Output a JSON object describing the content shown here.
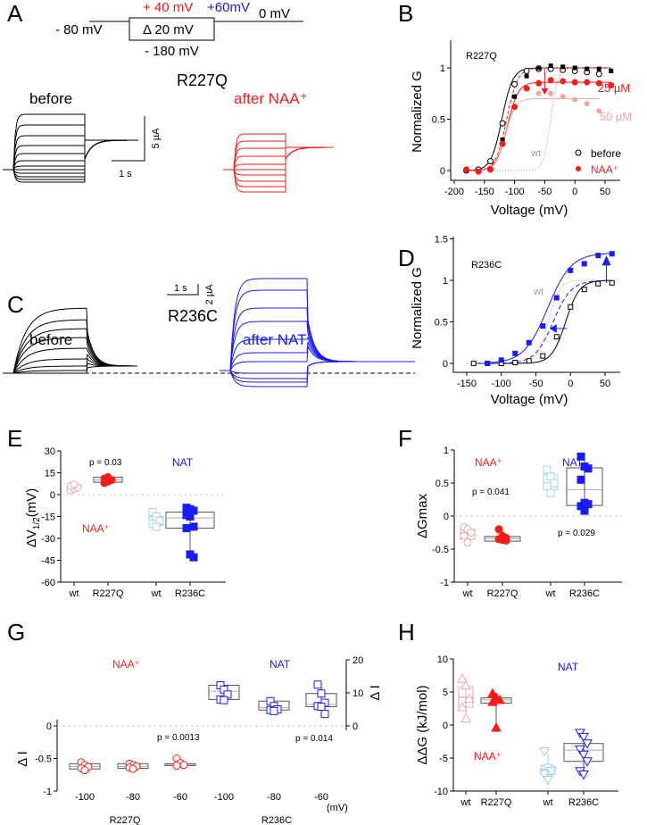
{
  "colors": {
    "naa": "#ff1a1a",
    "naa_light": "#f2a6a6",
    "nat": "#1a1aff",
    "nat_light": "#9fd3f0",
    "wt": "#999999"
  },
  "panels": {
    "A": "A",
    "B": "B",
    "C": "C",
    "D": "D",
    "E": "E",
    "F": "F",
    "G": "G",
    "H": "H"
  },
  "protocol": {
    "hold": "- 80 mV",
    "step": "Δ 20 mV",
    "tail": "0 mV",
    "top_red": "+ 40 mV",
    "top_blue": "+60mV",
    "bottom": "- 180 mV"
  },
  "panelA": {
    "title": "R227Q",
    "before": "before",
    "after": "after NAA⁺",
    "scale_y": "5 µA",
    "scale_x": "1 s"
  },
  "panelC": {
    "title": "R236C",
    "before": "before",
    "after": "after NAT",
    "scale_y": "2 µA",
    "scale_x": "1 s"
  },
  "chart_data": [
    {
      "id": "B",
      "type": "scatter",
      "title": "R227Q",
      "xlabel": "Voltage (mV)",
      "ylabel": "Normalized G",
      "xlim": [
        -200,
        65
      ],
      "ylim": [
        -0.1,
        1.2
      ],
      "xticks": [
        "-200",
        "-150",
        "-100",
        "-50",
        "0",
        "50"
      ],
      "yticks": [
        "0",
        "0.5",
        "1"
      ],
      "legend": {
        "placement": "bottom-right",
        "entries": [
          "before",
          "NAA⁺"
        ]
      },
      "annotations": [
        "25 µM",
        "50 µM",
        "wt"
      ],
      "series": [
        {
          "name": "before",
          "x": [
            -180,
            -160,
            -140,
            -120,
            -100,
            -80,
            -60,
            -40,
            -20,
            0,
            20,
            40
          ],
          "y": [
            0.0,
            0.01,
            0.09,
            0.46,
            0.84,
            0.97,
            0.99,
            0.99,
            0.98,
            0.97,
            0.96,
            0.94
          ]
        },
        {
          "name": "before (25 µM set)",
          "x": [
            -160,
            -140,
            -120,
            -100,
            -80,
            -60,
            -40,
            -20,
            0,
            20,
            40,
            60
          ],
          "y": [
            -0.01,
            0.01,
            0.3,
            0.72,
            0.92,
            1.0,
            1.02,
            1.01,
            1.0,
            0.99,
            0.99,
            0.97
          ]
        },
        {
          "name": "NAA⁺ 25 µM",
          "x": [
            -180,
            -160,
            -140,
            -120,
            -100,
            -80,
            -60,
            -40,
            -20,
            0,
            20,
            40,
            60
          ],
          "y": [
            0.01,
            -0.01,
            0.01,
            0.26,
            0.62,
            0.8,
            0.85,
            0.88,
            0.87,
            0.86,
            0.86,
            0.85,
            0.83
          ]
        },
        {
          "name": "NAA⁺ 50 µM",
          "x": [
            -60,
            -40,
            -20,
            0,
            20,
            40
          ],
          "y": [
            0.75,
            0.75,
            0.72,
            0.69,
            0.65,
            0.58
          ]
        }
      ]
    },
    {
      "id": "D",
      "type": "scatter",
      "title": "R236C",
      "xlabel": "Voltage (mV)",
      "ylabel": "Normalized G",
      "xlim": [
        -150,
        65
      ],
      "ylim": [
        -0.1,
        1.5
      ],
      "xticks": [
        "-150",
        "-100",
        "-50",
        "0",
        "50"
      ],
      "yticks": [
        "0",
        "0.5",
        "1",
        "1.5"
      ],
      "annotations": [
        "wt"
      ],
      "series": [
        {
          "name": "before",
          "x": [
            -140,
            -120,
            -100,
            -80,
            -60,
            -40,
            -20,
            0,
            20,
            40,
            60
          ],
          "y": [
            0,
            0,
            0,
            0.01,
            0.03,
            0.09,
            0.32,
            0.68,
            0.89,
            0.96,
            0.97
          ]
        },
        {
          "name": "NAT",
          "x": [
            -120,
            -100,
            -80,
            -60,
            -40,
            -20,
            0,
            20,
            40,
            60
          ],
          "y": [
            0.0,
            0.04,
            0.12,
            0.25,
            0.45,
            0.79,
            1.12,
            1.2,
            1.3,
            1.32
          ]
        }
      ]
    },
    {
      "id": "E",
      "type": "box",
      "ylabel_main": "ΔV",
      "ylabel_sub": "1/2",
      "ylabel_unit": "(mV)",
      "ylim": [
        -60,
        30
      ],
      "yticks": [
        "-60",
        "-45",
        "-30",
        "-15",
        "0",
        "15",
        "30"
      ],
      "categories": [
        "wt",
        "R227Q",
        "wt",
        "R236C"
      ],
      "annotations": {
        "p": "p = 0.03",
        "nat": "NAT",
        "naa": "NAA⁺"
      },
      "groups": [
        {
          "name": "wt (NAA⁺)",
          "values": [
            3,
            4,
            5,
            6,
            7
          ],
          "box": [
            4,
            5,
            6.5
          ]
        },
        {
          "name": "R227Q",
          "values": [
            8,
            9,
            10,
            11,
            12
          ],
          "box": [
            8.5,
            10,
            12
          ]
        },
        {
          "name": "wt (NAT)",
          "values": [
            -12,
            -15,
            -18,
            -20,
            -22
          ],
          "box": [
            -21,
            -18,
            -15
          ]
        },
        {
          "name": "R236C",
          "values": [
            -9,
            -10,
            -11,
            -14,
            -15,
            -22,
            -23,
            -41,
            -43
          ],
          "box": [
            -23,
            -16,
            -12
          ]
        }
      ]
    },
    {
      "id": "F",
      "type": "box",
      "ylabel": "ΔGmax",
      "ylim": [
        -1,
        1
      ],
      "yticks": [
        "-1",
        "-0.5",
        "0",
        "0.5",
        "1"
      ],
      "categories": [
        "wt",
        "R227Q",
        "wt",
        "R236C"
      ],
      "annotations": {
        "naa": "NAA⁺",
        "nat": "NAT",
        "p1": "p = 0.041",
        "p2": "p = 0.029"
      },
      "groups": [
        {
          "name": "wt (NAA⁺)",
          "values": [
            -0.17,
            -0.2,
            -0.25,
            -0.3,
            -0.4
          ],
          "box": [
            -0.35,
            -0.26,
            -0.2
          ]
        },
        {
          "name": "R227Q",
          "values": [
            -0.2,
            -0.3,
            -0.33,
            -0.35,
            -0.36,
            -0.37
          ],
          "box": [
            -0.38,
            -0.34,
            -0.31
          ]
        },
        {
          "name": "wt (NAT)",
          "values": [
            0.7,
            0.6,
            0.5,
            0.45,
            0.35
          ],
          "box": [
            0.4,
            0.5,
            0.62
          ]
        },
        {
          "name": "R236C",
          "values": [
            0.9,
            0.75,
            0.72,
            0.55,
            0.2,
            0.18,
            0.15,
            0.08
          ],
          "box": [
            0.16,
            0.4,
            0.73
          ]
        }
      ]
    },
    {
      "id": "G",
      "type": "box",
      "ylabel": "Δ I",
      "ylabel_right": "Δ I",
      "ylim_left": [
        -1,
        0
      ],
      "ylim_right": [
        0,
        20
      ],
      "yticks_left": [
        "-1",
        "-0.5",
        "0"
      ],
      "yticks_right": [
        "0",
        "10",
        "20"
      ],
      "categories": [
        "-100",
        "-80",
        "-60",
        "-100",
        "-80",
        "-60"
      ],
      "xunit": "(mV)",
      "group_labels": [
        "R227Q",
        "R236C"
      ],
      "annotations": {
        "naa": "NAA⁺",
        "nat": "NAT",
        "p1": "p = 0.0013",
        "p2": "p = 0.014"
      },
      "groups": [
        {
          "name": "R227Q -100",
          "values": [
            -0.56,
            -0.6,
            -0.63,
            -0.65,
            -0.68
          ],
          "box": [
            -0.66,
            -0.62,
            -0.58
          ]
        },
        {
          "name": "R227Q -80",
          "values": [
            -0.58,
            -0.6,
            -0.62,
            -0.64,
            -0.66
          ],
          "box": [
            -0.65,
            -0.62,
            -0.58
          ]
        },
        {
          "name": "R227Q -60",
          "values": [
            -0.5,
            -0.57,
            -0.6,
            -0.61
          ],
          "box": [
            -0.61,
            -0.6,
            -0.58
          ]
        },
        {
          "name": "R236C -100",
          "values": [
            12.3,
            11,
            9.5,
            8,
            7.8
          ],
          "box": [
            8,
            10.5,
            12.3
          ]
        },
        {
          "name": "R236C -80",
          "values": [
            7.5,
            6,
            5,
            4.8,
            4.5
          ],
          "box": [
            4.8,
            5.5,
            7.5
          ]
        },
        {
          "name": "R236C -60",
          "values": [
            12.5,
            9.8,
            7,
            6,
            5.8,
            3.6
          ],
          "box": [
            5.8,
            6.5,
            9.8
          ]
        }
      ]
    },
    {
      "id": "H",
      "type": "box",
      "ylabel": "ΔΔG (kJ/mol)",
      "ylim": [
        -10,
        10
      ],
      "yticks": [
        "-10",
        "-5",
        "0",
        "5",
        "10"
      ],
      "categories": [
        "wt",
        "R227Q",
        "wt",
        "R236C"
      ],
      "annotations": {
        "nat": "NAT",
        "naa": "NAA⁺"
      },
      "groups": [
        {
          "name": "wt (NAA⁺)",
          "values": [
            7,
            6,
            4,
            2.7,
            1
          ],
          "box": [
            2.7,
            4.2,
            5.8
          ]
        },
        {
          "name": "R227Q",
          "values": [
            4.8,
            4.2,
            3.8,
            3.5,
            -0.4
          ],
          "box": [
            3.3,
            3.8,
            4.1
          ]
        },
        {
          "name": "wt (NAT)",
          "values": [
            -4,
            -6.5,
            -7,
            -7.5,
            -8.3
          ],
          "box": [
            -7.5,
            -6.7,
            -6.2
          ]
        },
        {
          "name": "R236C",
          "values": [
            -1.2,
            -1.8,
            -2.8,
            -3.7,
            -4.5,
            -5.5,
            -7,
            -7.5
          ],
          "box": [
            -5.5,
            -3.8,
            -2.8
          ]
        }
      ]
    }
  ]
}
